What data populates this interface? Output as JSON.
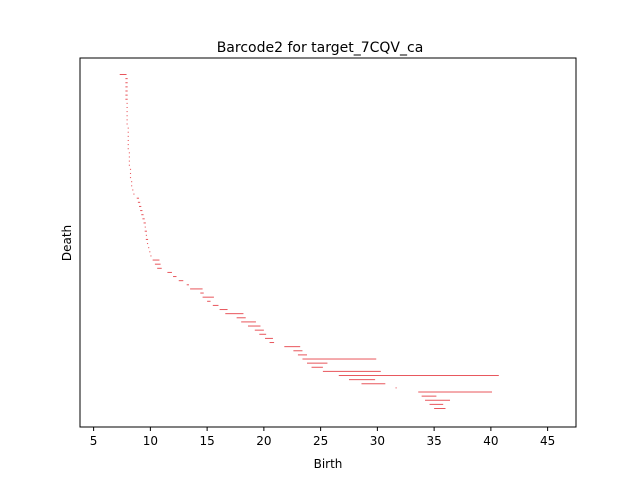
{
  "chart_data": {
    "type": "barcode",
    "title": "Barcode2 for target_7CQV_ca",
    "xlabel": "Birth",
    "ylabel": "Death",
    "xlim": [
      3.8,
      47.5
    ],
    "xticks": [
      5,
      10,
      15,
      20,
      25,
      30,
      35,
      40,
      45
    ],
    "y_ticks_shown": false,
    "bar_color": "#e8565c",
    "bars": [
      {
        "birth": 7.3,
        "death": 7.9
      },
      {
        "birth": 7.8,
        "death": 8.0
      },
      {
        "birth": 7.8,
        "death": 8.0
      },
      {
        "birth": 7.8,
        "death": 8.0
      },
      {
        "birth": 7.8,
        "death": 8.0
      },
      {
        "birth": 7.8,
        "death": 8.0
      },
      {
        "birth": 7.8,
        "death": 8.0
      },
      {
        "birth": 7.9,
        "death": 8.0
      },
      {
        "birth": 7.9,
        "death": 8.0
      },
      {
        "birth": 7.9,
        "death": 8.0
      },
      {
        "birth": 7.9,
        "death": 8.0
      },
      {
        "birth": 7.9,
        "death": 8.0
      },
      {
        "birth": 7.9,
        "death": 8.0
      },
      {
        "birth": 8.0,
        "death": 8.1
      },
      {
        "birth": 8.0,
        "death": 8.1
      },
      {
        "birth": 8.0,
        "death": 8.1
      },
      {
        "birth": 8.0,
        "death": 8.1
      },
      {
        "birth": 8.0,
        "death": 8.1
      },
      {
        "birth": 8.0,
        "death": 8.1
      },
      {
        "birth": 8.1,
        "death": 8.2
      },
      {
        "birth": 8.1,
        "death": 8.2
      },
      {
        "birth": 8.1,
        "death": 8.2
      },
      {
        "birth": 8.1,
        "death": 8.2
      },
      {
        "birth": 8.2,
        "death": 8.3
      },
      {
        "birth": 8.2,
        "death": 8.3
      },
      {
        "birth": 8.2,
        "death": 8.3
      },
      {
        "birth": 8.3,
        "death": 8.4
      },
      {
        "birth": 8.3,
        "death": 8.4
      },
      {
        "birth": 8.4,
        "death": 8.5
      },
      {
        "birth": 8.5,
        "death": 8.6
      },
      {
        "birth": 8.8,
        "death": 9.0
      },
      {
        "birth": 8.9,
        "death": 9.1
      },
      {
        "birth": 9.0,
        "death": 9.2
      },
      {
        "birth": 9.1,
        "death": 9.3
      },
      {
        "birth": 9.2,
        "death": 9.4
      },
      {
        "birth": 9.3,
        "death": 9.5
      },
      {
        "birth": 9.4,
        "death": 9.6
      },
      {
        "birth": 9.5,
        "death": 9.6
      },
      {
        "birth": 9.5,
        "death": 9.7
      },
      {
        "birth": 9.6,
        "death": 9.7
      },
      {
        "birth": 9.6,
        "death": 9.8
      },
      {
        "birth": 9.7,
        "death": 9.8
      },
      {
        "birth": 9.8,
        "death": 9.9
      },
      {
        "birth": 9.9,
        "death": 10.0
      },
      {
        "birth": 10.0,
        "death": 10.1
      },
      {
        "birth": 10.2,
        "death": 10.8
      },
      {
        "birth": 10.4,
        "death": 10.9
      },
      {
        "birth": 10.6,
        "death": 11.0
      },
      {
        "birth": 11.5,
        "death": 11.9
      },
      {
        "birth": 12.0,
        "death": 12.3
      },
      {
        "birth": 12.5,
        "death": 12.9
      },
      {
        "birth": 13.2,
        "death": 13.4
      },
      {
        "birth": 13.5,
        "death": 14.6
      },
      {
        "birth": 14.4,
        "death": 14.7
      },
      {
        "birth": 14.6,
        "death": 15.6
      },
      {
        "birth": 15.0,
        "death": 15.3
      },
      {
        "birth": 15.5,
        "death": 16.0
      },
      {
        "birth": 16.1,
        "death": 16.8
      },
      {
        "birth": 16.6,
        "death": 18.2
      },
      {
        "birth": 17.6,
        "death": 18.4
      },
      {
        "birth": 18.0,
        "death": 19.3
      },
      {
        "birth": 18.6,
        "death": 19.7
      },
      {
        "birth": 19.2,
        "death": 20.0
      },
      {
        "birth": 19.6,
        "death": 20.2
      },
      {
        "birth": 20.1,
        "death": 20.8
      },
      {
        "birth": 20.5,
        "death": 20.9
      },
      {
        "birth": 21.8,
        "death": 23.2
      },
      {
        "birth": 22.6,
        "death": 23.4
      },
      {
        "birth": 23.0,
        "death": 23.8
      },
      {
        "birth": 23.4,
        "death": 29.9
      },
      {
        "birth": 23.8,
        "death": 25.6
      },
      {
        "birth": 24.2,
        "death": 25.2
      },
      {
        "birth": 25.2,
        "death": 30.3
      },
      {
        "birth": 26.6,
        "death": 40.7
      },
      {
        "birth": 27.5,
        "death": 29.8
      },
      {
        "birth": 28.6,
        "death": 30.7
      },
      {
        "birth": 31.6,
        "death": 31.7
      },
      {
        "birth": 33.6,
        "death": 40.1
      },
      {
        "birth": 33.9,
        "death": 35.2
      },
      {
        "birth": 34.2,
        "death": 36.4
      },
      {
        "birth": 34.6,
        "death": 35.8
      },
      {
        "birth": 35.0,
        "death": 36.0
      }
    ]
  }
}
